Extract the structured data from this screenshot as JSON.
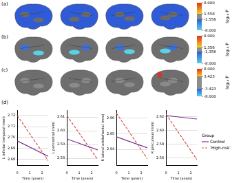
{
  "panels": [
    {
      "letter": "(a)",
      "colorbar": {
        "label": "log₁₀ P",
        "range": [
          -8,
          8
        ],
        "ticks": [
          {
            "value": 8,
            "label": "8.000"
          },
          {
            "value": 1.558,
            "label": "1.558"
          },
          {
            "value": -1.558,
            "label": "-1.558"
          },
          {
            "value": -8,
            "label": "-8.000"
          }
        ]
      }
    },
    {
      "letter": "(b)",
      "colorbar": {
        "label": "log₁₀ P",
        "range": [
          -8,
          8
        ],
        "ticks": [
          {
            "value": 8,
            "label": "8.000"
          },
          {
            "value": 1.356,
            "label": "1.356"
          },
          {
            "value": -1.356,
            "label": "-1.356"
          },
          {
            "value": -8,
            "label": "-8.000"
          }
        ]
      }
    },
    {
      "letter": "(c)",
      "colorbar": {
        "label": "log₁₀ P",
        "range": [
          -8,
          8
        ],
        "ticks": [
          {
            "value": 8,
            "label": "8.000"
          },
          {
            "value": 3.423,
            "label": "3.423"
          },
          {
            "value": -3.423,
            "label": "-3.423"
          },
          {
            "value": -8,
            "label": "-8.000"
          }
        ]
      }
    }
  ],
  "letter_d": "(d)",
  "legend_title": "Group",
  "chart_data": [
    {
      "type": "line",
      "x_label": "Time (years)",
      "y_label": "L inferior temporal (mm)",
      "x": [
        0,
        2.5
      ],
      "xlim": [
        0,
        2.5
      ],
      "xticks": [
        0,
        1,
        2
      ],
      "ylim": [
        2.675,
        2.725
      ],
      "yticks": [
        {
          "value": 2.68,
          "label": "2.68"
        },
        {
          "value": 2.69,
          "label": "2.69"
        },
        {
          "value": 2.7,
          "label": "2.70"
        },
        {
          "value": 2.71,
          "label": "2.71"
        },
        {
          "value": 2.72,
          "label": "2.72"
        }
      ],
      "grid": true,
      "series": [
        {
          "name": "Control",
          "color": "#7b2d8e",
          "line_style": "solid",
          "values": [
            2.697,
            2.683
          ]
        },
        {
          "name": "'High-risk'",
          "color": "#d9534f",
          "line_style": "dashed",
          "values": [
            2.72,
            2.679
          ]
        }
      ]
    },
    {
      "type": "line",
      "x_label": "Time (years)",
      "y_label": "L pericentral (mm)",
      "x": [
        0,
        2.5
      ],
      "xlim": [
        0,
        2.5
      ],
      "xticks": [
        0,
        1,
        2
      ],
      "ylim": [
        2.575,
        2.615
      ],
      "yticks": [
        {
          "value": 2.58,
          "label": "2.58"
        },
        {
          "value": 2.59,
          "label": "2.59"
        },
        {
          "value": 2.6,
          "label": "2.60"
        },
        {
          "value": 2.61,
          "label": "2.61"
        }
      ],
      "grid": true,
      "series": [
        {
          "name": "Control",
          "color": "#7b2d8e",
          "line_style": "solid",
          "values": [
            2.594,
            2.586
          ]
        },
        {
          "name": "'High-risk'",
          "color": "#d9534f",
          "line_style": "dashed",
          "values": [
            2.611,
            2.579
          ]
        }
      ]
    },
    {
      "type": "line",
      "x_label": "Time (years)",
      "y_label": "R lateral orbitofrontal (mm)",
      "x": [
        0,
        2.5
      ],
      "xlim": [
        0,
        2.5
      ],
      "xticks": [
        0,
        1,
        2
      ],
      "ylim": [
        2.93,
        2.965
      ],
      "yticks": [
        {
          "value": 2.94,
          "label": "2.94"
        },
        {
          "value": 2.95,
          "label": "2.95"
        },
        {
          "value": 2.96,
          "label": "2.96"
        }
      ],
      "grid": true,
      "series": [
        {
          "name": "Control",
          "color": "#7b2d8e",
          "line_style": "solid",
          "values": [
            2.948,
            2.941
          ]
        },
        {
          "name": "'High-risk'",
          "color": "#d9534f",
          "line_style": "dashed",
          "values": [
            2.963,
            2.934
          ]
        }
      ]
    },
    {
      "type": "line",
      "x_label": "Time (years)",
      "y_label": "R precuneus (mm)",
      "x": [
        0,
        2.5
      ],
      "xlim": [
        0,
        2.5
      ],
      "xticks": [
        0,
        1,
        2
      ],
      "ylim": [
        2.55,
        2.63
      ],
      "yticks": [
        {
          "value": 2.56,
          "label": "2.56"
        },
        {
          "value": 2.58,
          "label": "2.58"
        },
        {
          "value": 2.6,
          "label": "2.60"
        },
        {
          "value": 2.62,
          "label": "2.62"
        }
      ],
      "grid": true,
      "legend": "right",
      "series": [
        {
          "name": "Control",
          "color": "#7b2d8e",
          "line_style": "solid",
          "values": [
            2.622,
            2.617
          ]
        },
        {
          "name": "'High-risk'",
          "color": "#d9534f",
          "line_style": "dashed",
          "values": [
            2.624,
            2.558
          ]
        }
      ]
    }
  ]
}
